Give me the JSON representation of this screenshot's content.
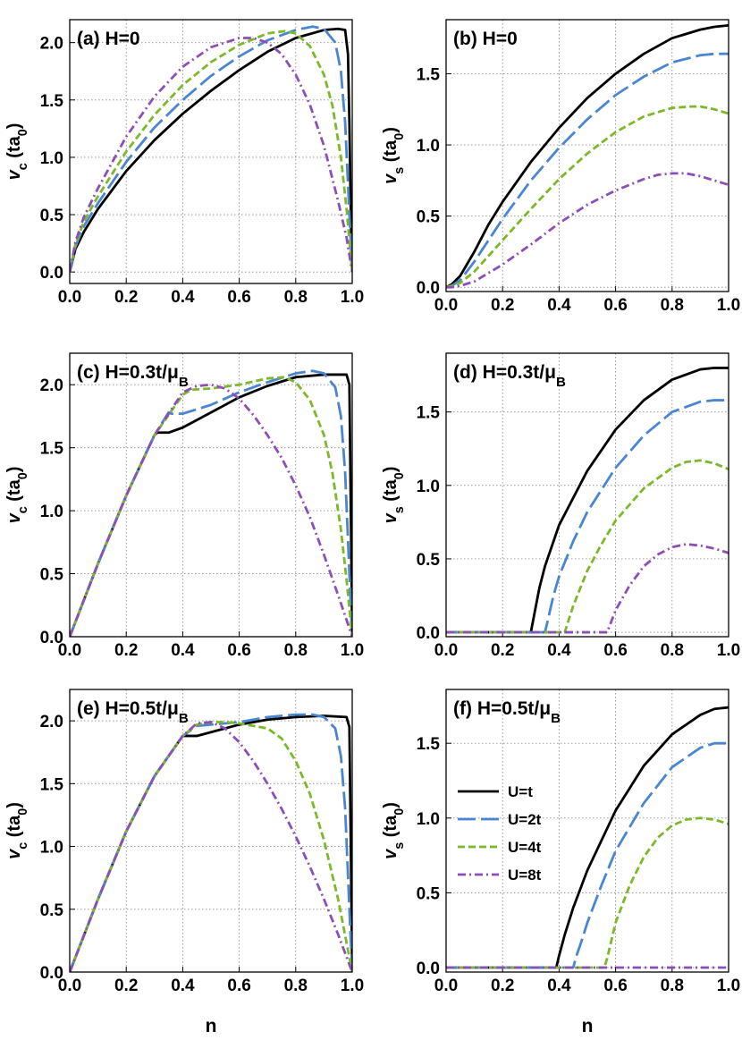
{
  "chart_data": [
    {
      "type": "line",
      "panel_label": "(a)  H=0",
      "ylabel": "v_c (ta_0)",
      "xlabel": "",
      "xlim": [
        0,
        1
      ],
      "ylim": [
        -0.1,
        2.2
      ],
      "xticks": [
        "0.0",
        "0.2",
        "0.4",
        "0.6",
        "0.8",
        "1.0"
      ],
      "yticks": [
        "0.0",
        "0.5",
        "1.0",
        "1.5",
        "2.0"
      ],
      "grid": true,
      "series": [
        {
          "name": "U=t",
          "color": "#000000",
          "dash": "solid",
          "x": [
            0,
            0.02,
            0.05,
            0.1,
            0.2,
            0.3,
            0.4,
            0.5,
            0.6,
            0.7,
            0.8,
            0.9,
            0.95,
            0.975,
            0.985,
            0.99,
            0.995,
            1.0
          ],
          "y": [
            0,
            0.2,
            0.35,
            0.55,
            0.88,
            1.15,
            1.38,
            1.58,
            1.76,
            1.92,
            2.04,
            2.11,
            2.12,
            2.11,
            1.9,
            1.3,
            0.5,
            0
          ]
        },
        {
          "name": "U=2t",
          "color": "#4a86d0",
          "dash": "longdash",
          "x": [
            0,
            0.02,
            0.05,
            0.1,
            0.2,
            0.3,
            0.4,
            0.5,
            0.6,
            0.7,
            0.8,
            0.86,
            0.9,
            0.94,
            0.96,
            0.975,
            0.99,
            1.0
          ],
          "y": [
            0,
            0.22,
            0.4,
            0.6,
            0.96,
            1.26,
            1.5,
            1.71,
            1.88,
            2.02,
            2.11,
            2.14,
            2.12,
            2.0,
            1.75,
            1.3,
            0.5,
            0
          ]
        },
        {
          "name": "U=4t",
          "color": "#7db82a",
          "dash": "dash",
          "x": [
            0,
            0.02,
            0.05,
            0.1,
            0.2,
            0.3,
            0.4,
            0.5,
            0.6,
            0.7,
            0.76,
            0.8,
            0.85,
            0.9,
            0.93,
            0.96,
            0.98,
            1.0
          ],
          "y": [
            0,
            0.24,
            0.44,
            0.66,
            1.05,
            1.37,
            1.63,
            1.83,
            1.98,
            2.08,
            2.1,
            2.08,
            1.97,
            1.72,
            1.45,
            1.0,
            0.55,
            0
          ]
        },
        {
          "name": "U=8t",
          "color": "#8b4fb5",
          "dash": "dashdot",
          "x": [
            0,
            0.02,
            0.05,
            0.1,
            0.2,
            0.3,
            0.4,
            0.5,
            0.6,
            0.65,
            0.7,
            0.75,
            0.8,
            0.85,
            0.9,
            0.95,
            0.98,
            1.0
          ],
          "y": [
            0,
            0.26,
            0.48,
            0.73,
            1.18,
            1.53,
            1.79,
            1.96,
            2.04,
            2.04,
            2.0,
            1.9,
            1.72,
            1.46,
            1.1,
            0.62,
            0.3,
            0
          ]
        }
      ]
    },
    {
      "type": "line",
      "panel_label": "(b)  H=0",
      "ylabel": "v_s (ta_0)",
      "xlabel": "",
      "xlim": [
        0,
        1
      ],
      "ylim": [
        -0.03,
        1.88
      ],
      "xticks": [
        "0.0",
        "0.2",
        "0.4",
        "0.6",
        "0.8",
        "1.0"
      ],
      "yticks": [
        "0.0",
        "0.5",
        "1.0",
        "1.5"
      ],
      "grid": true,
      "series": [
        {
          "name": "U=t",
          "color": "#000000",
          "dash": "solid",
          "x": [
            0,
            0.02,
            0.05,
            0.1,
            0.15,
            0.2,
            0.3,
            0.4,
            0.5,
            0.6,
            0.7,
            0.8,
            0.9,
            0.95,
            1.0
          ],
          "y": [
            0,
            0.02,
            0.08,
            0.25,
            0.44,
            0.6,
            0.88,
            1.12,
            1.33,
            1.5,
            1.64,
            1.75,
            1.81,
            1.83,
            1.84
          ]
        },
        {
          "name": "U=2t",
          "color": "#4a86d0",
          "dash": "longdash",
          "x": [
            0,
            0.02,
            0.05,
            0.1,
            0.15,
            0.2,
            0.3,
            0.4,
            0.5,
            0.6,
            0.7,
            0.8,
            0.9,
            0.95,
            1.0
          ],
          "y": [
            0,
            0.01,
            0.05,
            0.18,
            0.33,
            0.48,
            0.75,
            0.98,
            1.18,
            1.35,
            1.48,
            1.58,
            1.63,
            1.64,
            1.64
          ]
        },
        {
          "name": "U=4t",
          "color": "#7db82a",
          "dash": "dash",
          "x": [
            0,
            0.02,
            0.05,
            0.1,
            0.15,
            0.2,
            0.3,
            0.4,
            0.5,
            0.6,
            0.7,
            0.8,
            0.87,
            0.9,
            0.95,
            1.0
          ],
          "y": [
            0,
            0.01,
            0.03,
            0.11,
            0.22,
            0.33,
            0.55,
            0.76,
            0.94,
            1.09,
            1.2,
            1.26,
            1.27,
            1.27,
            1.25,
            1.22
          ]
        },
        {
          "name": "U=8t",
          "color": "#8b4fb5",
          "dash": "dashdot",
          "x": [
            0,
            0.02,
            0.05,
            0.1,
            0.15,
            0.2,
            0.3,
            0.4,
            0.5,
            0.6,
            0.7,
            0.75,
            0.8,
            0.85,
            0.9,
            0.95,
            1.0
          ],
          "y": [
            0,
            0.0,
            0.01,
            0.04,
            0.1,
            0.16,
            0.3,
            0.45,
            0.58,
            0.68,
            0.76,
            0.79,
            0.8,
            0.8,
            0.78,
            0.75,
            0.72
          ]
        }
      ]
    },
    {
      "type": "line",
      "panel_label": "(c)  H=0.3t/μ_B",
      "ylabel": "v_c (ta_0)",
      "xlabel": "",
      "xlim": [
        0,
        1
      ],
      "ylim": [
        0,
        2.25
      ],
      "xticks": [
        "0.0",
        "0.2",
        "0.4",
        "0.6",
        "0.8",
        "1.0"
      ],
      "yticks": [
        "0.0",
        "0.5",
        "1.0",
        "1.5",
        "2.0"
      ],
      "grid": true,
      "series": [
        {
          "name": "U=t",
          "color": "#000000",
          "dash": "solid",
          "x": [
            0,
            0.1,
            0.2,
            0.3,
            0.31,
            0.35,
            0.4,
            0.5,
            0.6,
            0.7,
            0.8,
            0.9,
            0.98,
            0.99,
            0.995,
            1.0
          ],
          "y": [
            0,
            0.58,
            1.12,
            1.6,
            1.62,
            1.62,
            1.66,
            1.78,
            1.9,
            1.99,
            2.06,
            2.08,
            2.08,
            2.0,
            1.0,
            0
          ]
        },
        {
          "name": "U=2t",
          "color": "#4a86d0",
          "dash": "longdash",
          "x": [
            0,
            0.1,
            0.2,
            0.3,
            0.35,
            0.36,
            0.4,
            0.5,
            0.6,
            0.7,
            0.8,
            0.86,
            0.9,
            0.94,
            0.96,
            0.975,
            0.99,
            1.0
          ],
          "y": [
            0,
            0.58,
            1.12,
            1.6,
            1.78,
            1.77,
            1.77,
            1.84,
            1.94,
            2.02,
            2.09,
            2.11,
            2.09,
            1.98,
            1.75,
            1.3,
            0.5,
            0
          ]
        },
        {
          "name": "U=4t",
          "color": "#7db82a",
          "dash": "dash",
          "x": [
            0,
            0.1,
            0.2,
            0.3,
            0.4,
            0.43,
            0.5,
            0.6,
            0.7,
            0.76,
            0.8,
            0.85,
            0.9,
            0.93,
            0.96,
            0.98,
            1.0
          ],
          "y": [
            0,
            0.58,
            1.12,
            1.6,
            1.92,
            1.96,
            1.97,
            2.0,
            2.05,
            2.06,
            2.02,
            1.88,
            1.6,
            1.3,
            0.85,
            0.45,
            0
          ]
        },
        {
          "name": "U=8t",
          "color": "#8b4fb5",
          "dash": "dashdot",
          "x": [
            0,
            0.1,
            0.2,
            0.3,
            0.4,
            0.45,
            0.5,
            0.55,
            0.6,
            0.65,
            0.7,
            0.75,
            0.8,
            0.85,
            0.9,
            0.95,
            1.0
          ],
          "y": [
            0,
            0.58,
            1.12,
            1.6,
            1.94,
            1.99,
            2.0,
            1.97,
            1.89,
            1.76,
            1.6,
            1.42,
            1.2,
            0.95,
            0.65,
            0.33,
            0
          ]
        }
      ]
    },
    {
      "type": "line",
      "panel_label": "(d)  H=0.3t/μ_B",
      "ylabel": "v_s (ta_0)",
      "xlabel": "",
      "xlim": [
        0,
        1
      ],
      "ylim": [
        -0.03,
        1.9
      ],
      "xticks": [
        "0.0",
        "0.2",
        "0.4",
        "0.6",
        "0.8",
        "1.0"
      ],
      "yticks": [
        "0.0",
        "0.5",
        "1.0",
        "1.5"
      ],
      "grid": true,
      "series": [
        {
          "name": "U=t",
          "color": "#000000",
          "dash": "solid",
          "x": [
            0,
            0.3,
            0.31,
            0.33,
            0.35,
            0.4,
            0.5,
            0.6,
            0.7,
            0.8,
            0.9,
            0.95,
            1.0
          ],
          "y": [
            0,
            0,
            0.1,
            0.3,
            0.45,
            0.73,
            1.1,
            1.38,
            1.58,
            1.72,
            1.79,
            1.8,
            1.8
          ]
        },
        {
          "name": "U=2t",
          "color": "#4a86d0",
          "dash": "longdash",
          "x": [
            0,
            0.35,
            0.36,
            0.38,
            0.4,
            0.45,
            0.5,
            0.6,
            0.7,
            0.8,
            0.9,
            0.95,
            1.0
          ],
          "y": [
            0,
            0,
            0.08,
            0.25,
            0.38,
            0.62,
            0.82,
            1.12,
            1.34,
            1.5,
            1.57,
            1.58,
            1.58
          ]
        },
        {
          "name": "U=4t",
          "color": "#7db82a",
          "dash": "dash",
          "x": [
            0,
            0.42,
            0.43,
            0.45,
            0.5,
            0.55,
            0.6,
            0.7,
            0.8,
            0.85,
            0.9,
            0.95,
            1.0
          ],
          "y": [
            0,
            0,
            0.06,
            0.18,
            0.42,
            0.6,
            0.76,
            0.98,
            1.12,
            1.16,
            1.17,
            1.15,
            1.11
          ]
        },
        {
          "name": "U=8t",
          "color": "#8b4fb5",
          "dash": "dashdot",
          "x": [
            0,
            0.57,
            0.58,
            0.6,
            0.65,
            0.7,
            0.75,
            0.8,
            0.85,
            0.9,
            0.95,
            1.0
          ],
          "y": [
            0,
            0,
            0.05,
            0.15,
            0.32,
            0.45,
            0.53,
            0.58,
            0.6,
            0.59,
            0.57,
            0.54
          ]
        }
      ]
    },
    {
      "type": "line",
      "panel_label": "(e)  H=0.5t/μ_B",
      "ylabel": "v_c (ta_0)",
      "xlabel": "n",
      "xlim": [
        0,
        1
      ],
      "ylim": [
        0,
        2.25
      ],
      "xticks": [
        "0.0",
        "0.2",
        "0.4",
        "0.6",
        "0.8",
        "1.0"
      ],
      "yticks": [
        "0.0",
        "0.5",
        "1.0",
        "1.5",
        "2.0"
      ],
      "grid": true,
      "series": [
        {
          "name": "U=t",
          "color": "#000000",
          "dash": "solid",
          "x": [
            0,
            0.1,
            0.2,
            0.3,
            0.4,
            0.45,
            0.5,
            0.6,
            0.7,
            0.8,
            0.9,
            0.98,
            0.99,
            0.995,
            1.0
          ],
          "y": [
            0,
            0.58,
            1.12,
            1.56,
            1.88,
            1.88,
            1.91,
            1.97,
            2.01,
            2.03,
            2.04,
            2.03,
            1.95,
            1.0,
            0
          ]
        },
        {
          "name": "U=2t",
          "color": "#4a86d0",
          "dash": "longdash",
          "x": [
            0,
            0.1,
            0.2,
            0.3,
            0.4,
            0.45,
            0.5,
            0.6,
            0.7,
            0.8,
            0.86,
            0.9,
            0.94,
            0.96,
            0.975,
            0.99,
            1.0
          ],
          "y": [
            0,
            0.58,
            1.12,
            1.56,
            1.88,
            1.96,
            1.97,
            1.99,
            2.03,
            2.05,
            2.05,
            2.03,
            1.94,
            1.72,
            1.3,
            0.5,
            0
          ]
        },
        {
          "name": "U=4t",
          "color": "#7db82a",
          "dash": "dash",
          "x": [
            0,
            0.1,
            0.2,
            0.3,
            0.4,
            0.45,
            0.5,
            0.55,
            0.6,
            0.65,
            0.7,
            0.75,
            0.8,
            0.85,
            0.9,
            0.95,
            1.0
          ],
          "y": [
            0,
            0.58,
            1.12,
            1.56,
            1.88,
            1.97,
            1.99,
            1.99,
            1.98,
            1.96,
            1.94,
            1.86,
            1.68,
            1.42,
            1.05,
            0.58,
            0
          ]
        },
        {
          "name": "U=8t",
          "color": "#8b4fb5",
          "dash": "dashdot",
          "x": [
            0,
            0.1,
            0.2,
            0.3,
            0.4,
            0.45,
            0.5,
            0.55,
            0.6,
            0.65,
            0.7,
            0.75,
            0.8,
            0.85,
            0.9,
            0.95,
            1.0
          ],
          "y": [
            0,
            0.58,
            1.12,
            1.56,
            1.88,
            1.98,
            1.99,
            1.94,
            1.83,
            1.68,
            1.5,
            1.3,
            1.08,
            0.84,
            0.58,
            0.3,
            0
          ]
        }
      ]
    },
    {
      "type": "line",
      "panel_label": "(f)  H=0.5t/μ_B",
      "ylabel": "v_s (ta_0)",
      "xlabel": "n",
      "xlim": [
        0,
        1
      ],
      "ylim": [
        -0.03,
        1.86
      ],
      "xticks": [
        "0.0",
        "0.2",
        "0.4",
        "0.6",
        "0.8",
        "1.0"
      ],
      "yticks": [
        "0.0",
        "0.5",
        "1.0",
        "1.5"
      ],
      "grid": true,
      "legend": {
        "position": "left",
        "entries": [
          "U=t",
          "U=2t",
          "U=4t",
          "U=8t"
        ]
      },
      "series": [
        {
          "name": "U=t",
          "color": "#000000",
          "dash": "solid",
          "x": [
            0,
            0.39,
            0.4,
            0.42,
            0.45,
            0.5,
            0.6,
            0.7,
            0.8,
            0.9,
            0.95,
            1.0
          ],
          "y": [
            0,
            0,
            0.08,
            0.22,
            0.4,
            0.65,
            1.05,
            1.35,
            1.56,
            1.69,
            1.73,
            1.74
          ]
        },
        {
          "name": "U=2t",
          "color": "#4a86d0",
          "dash": "longdash",
          "x": [
            0,
            0.45,
            0.46,
            0.48,
            0.5,
            0.55,
            0.6,
            0.7,
            0.8,
            0.9,
            0.95,
            1.0
          ],
          "y": [
            0,
            0,
            0.07,
            0.18,
            0.3,
            0.55,
            0.78,
            1.1,
            1.34,
            1.47,
            1.5,
            1.5
          ]
        },
        {
          "name": "U=4t",
          "color": "#7db82a",
          "dash": "dash",
          "x": [
            0,
            0.56,
            0.57,
            0.6,
            0.65,
            0.7,
            0.75,
            0.8,
            0.85,
            0.9,
            0.95,
            1.0
          ],
          "y": [
            0,
            0,
            0.06,
            0.3,
            0.55,
            0.74,
            0.87,
            0.95,
            0.99,
            1.0,
            0.99,
            0.96
          ]
        },
        {
          "name": "U=8t",
          "color": "#8b4fb5",
          "dash": "dashdot",
          "x": [
            0,
            1.0
          ],
          "y": [
            0,
            0
          ]
        }
      ]
    }
  ]
}
